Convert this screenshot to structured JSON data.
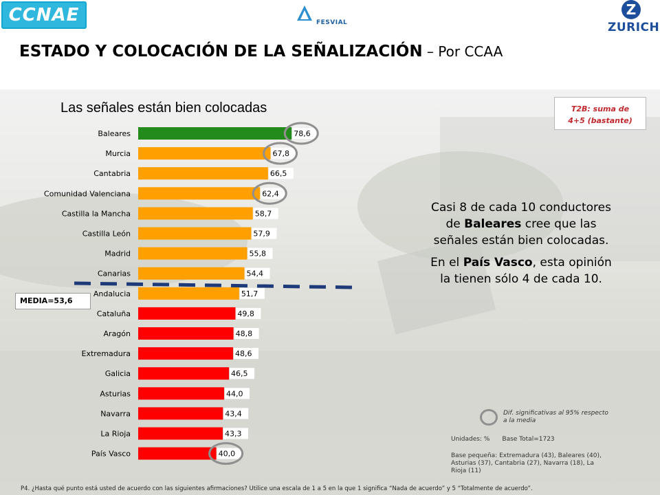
{
  "logos": {
    "left": "CCNAE",
    "middle": "FESVIAL",
    "right": "ZURICH"
  },
  "header": {
    "title": "ESTADO Y COLOCACIÓN DE LA SEÑALIZACIÓN",
    "subtitle": " – Por CCAA"
  },
  "badge": {
    "line1": "T2B: suma de",
    "line2": "4+5 (bastante)"
  },
  "note": {
    "p1_a": "Casi 8 de cada 10 conductores de ",
    "p1_b": "Baleares",
    "p1_c": " cree que las señales están bien colocadas.",
    "p2_a": "En el ",
    "p2_b": "País Vasco",
    "p2_c": ", esta opinión la tienen sólo 4 de cada 10."
  },
  "media_label": "MEDIA=53,6",
  "legend": {
    "text": "Dif. significativas al 95% respecto a la media"
  },
  "units": {
    "label": "Unidades: %",
    "base": "Base Total=1723"
  },
  "small_base": "Base pequeña: Extremadura (43), Baleares (40), Asturias (37), Cantabria (27), Navarra (18), La Rioja (11)",
  "footnote": "P4. ¿Hasta qué punto está usted de acuerdo con las siguientes afirmaciones? Utilice una escala de 1 a 5 en la que 1 significa “Nada de acuerdo” y 5 “Totalmente de acuerdo”.",
  "colors": {
    "green": "#228b1b",
    "orange": "#ffa000",
    "red": "#ff0000",
    "dash": "#1e3a78",
    "circle": "#8f8f8f"
  },
  "chart_data": {
    "type": "bar",
    "orientation": "horizontal",
    "title": "Las señales están bien colocadas",
    "mean": 53.6,
    "xlim": [
      0,
      100
    ],
    "categories": [
      "Baleares",
      "Murcia",
      "Cantabria",
      "Comunidad Valenciana",
      "Castilla la Mancha",
      "Castilla León",
      "Madrid",
      "Canarias",
      "Andalucia",
      "Cataluña",
      "Aragón",
      "Extremadura",
      "Galicia",
      "Asturias",
      "Navarra",
      "La Rioja",
      "País Vasco"
    ],
    "values": [
      78.6,
      67.8,
      66.5,
      62.4,
      58.7,
      57.9,
      55.8,
      54.4,
      51.7,
      49.8,
      48.8,
      48.6,
      46.5,
      44.0,
      43.4,
      43.3,
      40.0
    ],
    "value_labels": [
      "78,6",
      "67,8",
      "66,5",
      "62,4",
      "58,7",
      "57,9",
      "55,8",
      "54,4",
      "51,7",
      "49,8",
      "48,8",
      "48,6",
      "46,5",
      "44,0",
      "43,4",
      "43,3",
      "40,0"
    ],
    "bar_colors": [
      "green",
      "orange",
      "orange",
      "orange",
      "orange",
      "orange",
      "orange",
      "orange",
      "orange",
      "red",
      "red",
      "red",
      "red",
      "red",
      "red",
      "red",
      "red"
    ],
    "significant": [
      "Baleares",
      "Murcia",
      "Comunidad Valenciana",
      "País Vasco"
    ]
  }
}
